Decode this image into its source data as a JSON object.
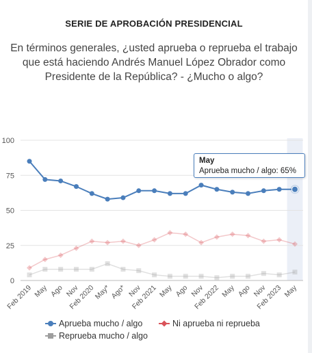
{
  "title": "SERIE DE APROBACIÓN PRESIDENCIAL",
  "subtitle": "En términos generales, ¿usted aprueba o reprueba el trabajo que está haciendo Andrés Manuel López Obrador como Presidente de la República? - ¿Mucho o algo?",
  "tooltip": {
    "title": "May",
    "text": "Aprueba mucho / algo: 65%"
  },
  "chart_data": {
    "type": "line",
    "categories": [
      "Feb 2019",
      "May",
      "Ago",
      "Nov",
      "Feb 2020",
      "May*",
      "Ago*",
      "Nov",
      "Feb 2021",
      "May",
      "Ago",
      "Nov",
      "Feb 2022",
      "May",
      "Ago",
      "Nov",
      "Feb 2023",
      "May"
    ],
    "ylim": [
      0,
      100
    ],
    "yticks": [
      0,
      25,
      50,
      75,
      100
    ],
    "grid": true,
    "legend_position": "bottom",
    "highlight_index": 17,
    "series": [
      {
        "name": "Aprueba mucho / algo",
        "color": "#4a7ebb",
        "marker": "circle",
        "values": [
          85,
          72,
          71,
          67,
          62,
          58,
          59,
          64,
          64,
          62,
          62,
          68,
          65,
          63,
          62,
          64,
          65,
          65
        ]
      },
      {
        "name": "Ni aprueba ni reprueba",
        "color": "#d9535a",
        "marker": "diamond",
        "values": [
          9,
          15,
          18,
          23,
          28,
          27,
          28,
          25,
          29,
          34,
          33,
          27,
          31,
          33,
          32,
          28,
          29,
          26
        ]
      },
      {
        "name": "Reprueba mucho / algo",
        "color": "#9e9e9e",
        "marker": "square",
        "values": [
          4,
          8,
          8,
          8,
          8,
          12,
          8,
          7,
          4,
          3,
          3,
          3,
          2,
          3,
          3,
          5,
          4,
          6
        ]
      }
    ]
  }
}
